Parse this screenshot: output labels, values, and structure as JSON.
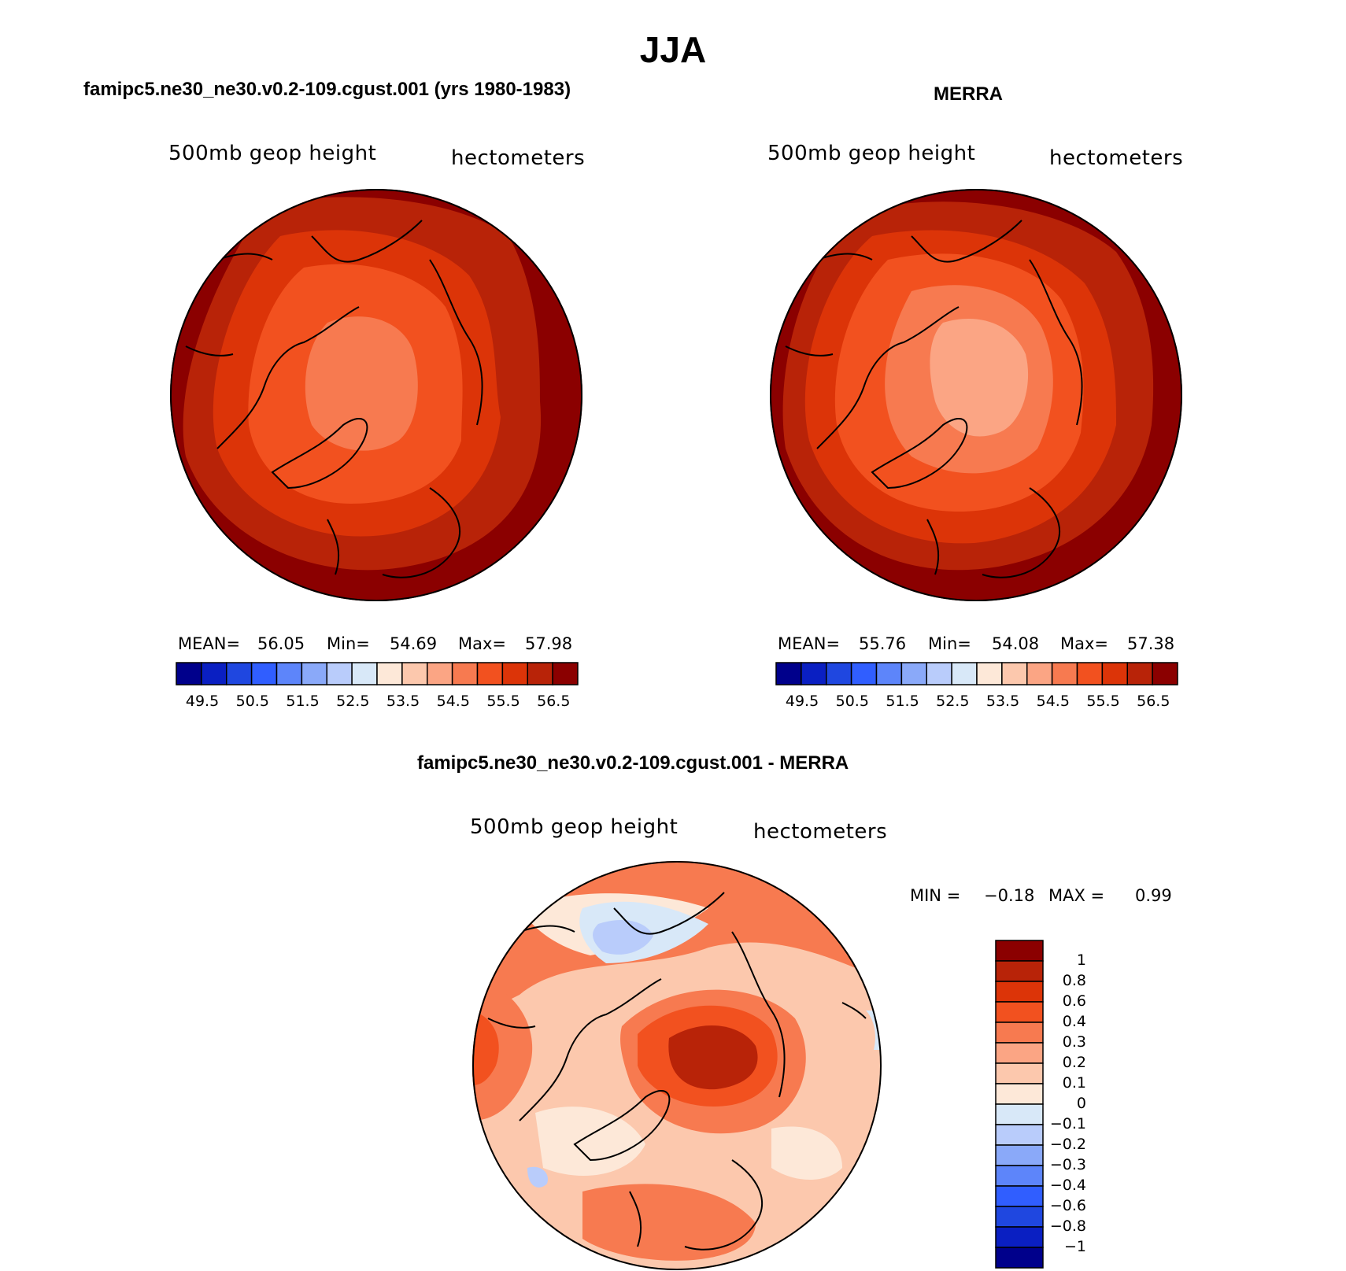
{
  "title": "JJA",
  "panels": [
    {
      "heading": "famipc5.ne30_ne30.v0.2-109.cgust.001 (yrs 1980-1983)",
      "field_label": "500mb geop height",
      "units_label": "hectometers",
      "stats": {
        "mean_label": "MEAN=",
        "mean": "56.05",
        "min_label": "Min=",
        "min": "54.69",
        "max_label": "Max=",
        "max": "57.98"
      }
    },
    {
      "heading": "MERRA",
      "field_label": "500mb geop height",
      "units_label": "hectometers",
      "stats": {
        "mean_label": "MEAN=",
        "mean": "55.76",
        "min_label": "Min=",
        "min": "54.08",
        "max_label": "Max=",
        "max": "57.38"
      }
    },
    {
      "heading": "famipc5.ne30_ne30.v0.2-109.cgust.001 - MERRA",
      "field_label": "500mb geop height",
      "units_label": "hectometers",
      "stats": {
        "min_label": "MIN =",
        "min": "−0.18",
        "max_label": "MAX =",
        "max": "0.99"
      }
    }
  ],
  "colorbar_abs": {
    "colors": [
      "#00008b",
      "#0a1fc2",
      "#1f47e0",
      "#305eff",
      "#5d85fa",
      "#8aa9f9",
      "#b9ccfb",
      "#d8e8f8",
      "#fde8d8",
      "#fcc8ad",
      "#fba584",
      "#f77a50",
      "#f2511f",
      "#dc3408",
      "#b82308",
      "#8b0000"
    ],
    "tick_labels": [
      "49.5",
      "50.5",
      "51.5",
      "52.5",
      "53.5",
      "54.5",
      "55.5",
      "56.5"
    ]
  },
  "colorbar_diff": {
    "colors": [
      "#8b0000",
      "#b82308",
      "#dc3408",
      "#f2511f",
      "#f77a50",
      "#fba584",
      "#fcc8ad",
      "#fde8d8",
      "#d8e8f8",
      "#b9ccfb",
      "#8aa9f9",
      "#5d85fa",
      "#305eff",
      "#1f47e0",
      "#0a1fc2",
      "#00008b"
    ],
    "tick_labels": [
      "1",
      "0.8",
      "0.6",
      "0.4",
      "0.3",
      "0.2",
      "0.1",
      "0",
      "−0.1",
      "−0.2",
      "−0.3",
      "−0.4",
      "−0.6",
      "−0.8",
      "−1"
    ]
  }
}
